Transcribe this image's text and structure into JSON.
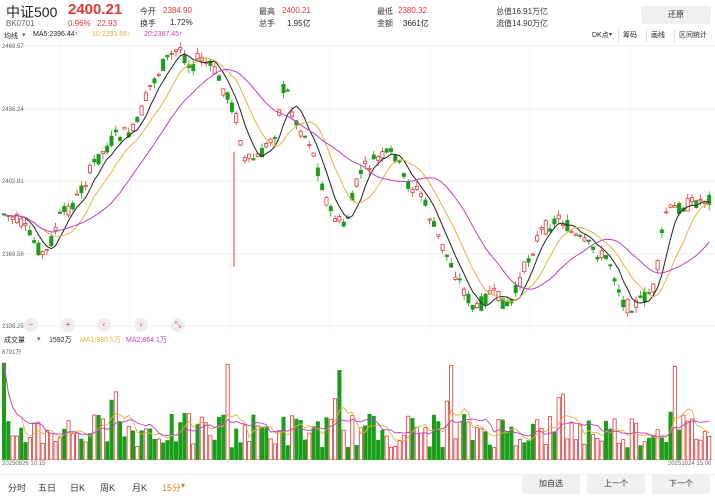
{
  "header": {
    "name": "中证500",
    "code": "BK0701",
    "price": "2400.21",
    "change_pct": "0.96%",
    "change": "22.93",
    "fields": [
      {
        "label": "今开",
        "value": "2384.90",
        "red": true
      },
      {
        "label": "换手",
        "value": "1.72%",
        "red": false
      },
      {
        "label": "最高",
        "value": "2400.21",
        "red": true
      },
      {
        "label": "总手",
        "value": "1.95亿",
        "red": false
      },
      {
        "label": "最低",
        "value": "2380.32",
        "red": true
      },
      {
        "label": "金额",
        "value": "3661亿",
        "red": false
      }
    ],
    "total_mv": "总值16.91万亿",
    "float_mv": "流值14.90万亿",
    "reset_label": "还原"
  },
  "ma_legend": {
    "main": "均线",
    "ma5": "MA5:2396.44↑",
    "ma10": "10:2393.68↑",
    "ma20": "20:2387.45↑"
  },
  "right_tabs": [
    "DK点",
    "筹码",
    "画线",
    "区间统计"
  ],
  "y_axis": [
    "2469.57",
    "2436.24",
    "2402.91",
    "2369.58",
    "2336.25"
  ],
  "controls": [
    "−",
    "+",
    "‹",
    "›",
    "⤡"
  ],
  "volume_legend": {
    "label": "成交量",
    "current": "1592万",
    "ma1": "MA1:980.5万",
    "ma2": "MA2:864.1万",
    "ymax": "6791万"
  },
  "time_axis": {
    "start": "20250926 10:15",
    "end": "20251024 15:00"
  },
  "bottom_tabs": [
    "分时",
    "五日",
    "日K",
    "周K",
    "月K",
    "15分"
  ],
  "active_tab": "15分",
  "nav": {
    "add": "加自选",
    "prev": "上一个",
    "next": "下一个"
  },
  "colors": {
    "up": "#e03838",
    "down": "#1a9e1a",
    "ma5": "#222222",
    "ma10": "#e8b040",
    "ma20": "#c040c0"
  }
}
